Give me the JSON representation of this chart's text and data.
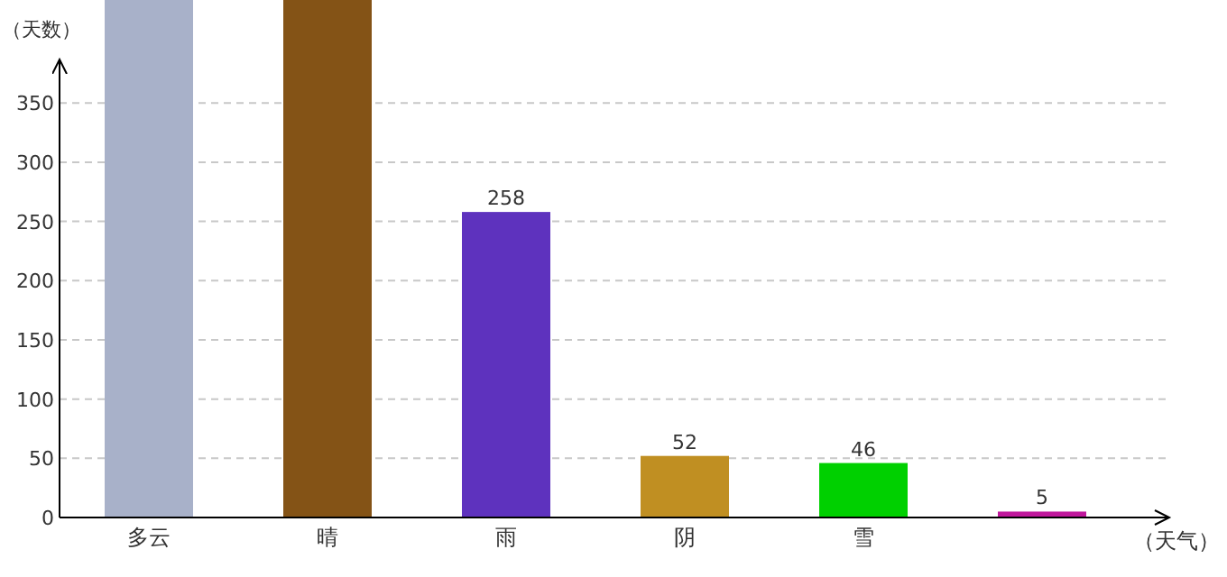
{
  "chart_data": {
    "type": "bar",
    "xlabel": "（天气）",
    "ylabel": "（天数）",
    "categories": [
      "多云",
      "晴",
      "雨",
      "阴",
      "雪",
      null
    ],
    "values": [
      437,
      437,
      258,
      52,
      46,
      5
    ],
    "value_labels": [
      null,
      null,
      "258",
      "52",
      "46",
      "5"
    ],
    "colors": [
      "#a8b1c9",
      "#845316",
      "#5e32be",
      "#c08f22",
      "#00d000",
      "#c0179c"
    ],
    "ylim": [
      0,
      437
    ],
    "yticks": [
      0,
      50,
      100,
      150,
      200,
      250,
      300,
      350
    ],
    "grid": "y"
  }
}
